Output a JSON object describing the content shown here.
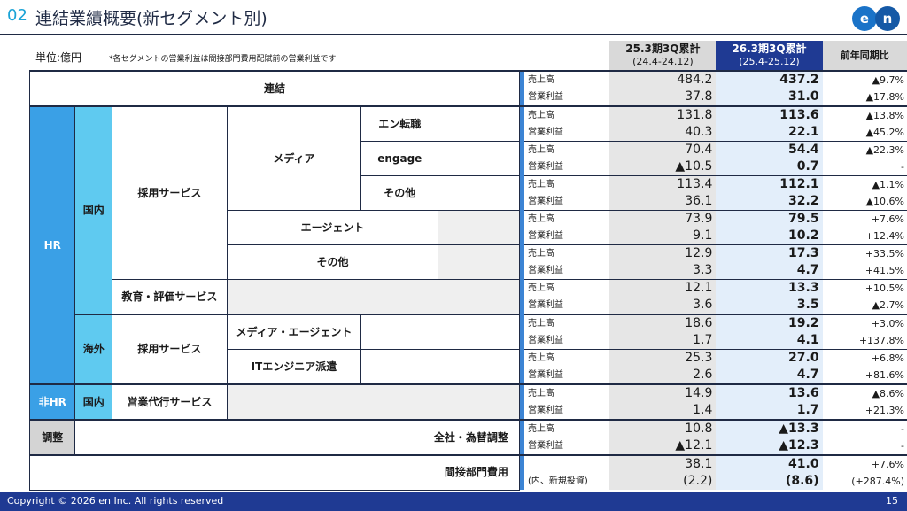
{
  "header": {
    "section_number": "02",
    "title": "連結業績概要(新セグメント別)",
    "logo_text": "en"
  },
  "unit_label": "単位:億円",
  "note": "*各セグメントの営業利益は間接部門費用配賦前の営業利益です",
  "columns": {
    "prev": {
      "title": "25.3期3Q累計",
      "period": "(24.4-24.12)"
    },
    "curr": {
      "title": "26.3期3Q累計",
      "period": "(25.4-25.12)"
    },
    "yoy": "前年同期比"
  },
  "labels": {
    "consolidated": "連結",
    "hr": "HR",
    "non_hr": "非HR",
    "adjust": "調整",
    "domestic": "国内",
    "overseas": "海外",
    "recruit_service": "採用サービス",
    "edu_service": "教育・評価サービス",
    "sales_agency": "営業代行サービス",
    "media": "メディア",
    "agent": "エージェント",
    "other": "その他",
    "media_agent": "メディア・エージェント",
    "it_dispatch": "ITエンジニア派遣",
    "en_tenshoku": "エン転職",
    "engage": "engage",
    "corp_fx": "全社・為替調整",
    "indirect": "間接部門費用",
    "revenue": "売上高",
    "op_profit": "営業利益",
    "new_invest": "(内、新規投資)"
  },
  "rows": {
    "consolidated": {
      "rev": [
        "484.2",
        "437.2",
        "▲9.7%"
      ],
      "op": [
        "37.8",
        "31.0",
        "▲17.8%"
      ]
    },
    "en_tenshoku": {
      "rev": [
        "131.8",
        "113.6",
        "▲13.8%"
      ],
      "op": [
        "40.3",
        "22.1",
        "▲45.2%"
      ]
    },
    "engage": {
      "rev": [
        "70.4",
        "54.4",
        "▲22.3%"
      ],
      "op": [
        "▲10.5",
        "0.7",
        "-"
      ]
    },
    "media_other": {
      "rev": [
        "113.4",
        "112.1",
        "▲1.1%"
      ],
      "op": [
        "36.1",
        "32.2",
        "▲10.6%"
      ]
    },
    "agent": {
      "rev": [
        "73.9",
        "79.5",
        "+7.6%"
      ],
      "op": [
        "9.1",
        "10.2",
        "+12.4%"
      ]
    },
    "other": {
      "rev": [
        "12.9",
        "17.3",
        "+33.5%"
      ],
      "op": [
        "3.3",
        "4.7",
        "+41.5%"
      ]
    },
    "edu": {
      "rev": [
        "12.1",
        "13.3",
        "+10.5%"
      ],
      "op": [
        "3.6",
        "3.5",
        "▲2.7%"
      ]
    },
    "os_media_agent": {
      "rev": [
        "18.6",
        "19.2",
        "+3.0%"
      ],
      "op": [
        "1.7",
        "4.1",
        "+137.8%"
      ]
    },
    "os_it": {
      "rev": [
        "25.3",
        "27.0",
        "+6.8%"
      ],
      "op": [
        "2.6",
        "4.7",
        "+81.6%"
      ]
    },
    "nonhr": {
      "rev": [
        "14.9",
        "13.6",
        "▲8.6%"
      ],
      "op": [
        "1.4",
        "1.7",
        "+21.3%"
      ]
    },
    "adjust": {
      "rev": [
        "10.8",
        "▲13.3",
        "-"
      ],
      "op": [
        "▲12.1",
        "▲12.3",
        "-"
      ]
    },
    "indirect": {
      "main": [
        "38.1",
        "41.0",
        "+7.6%"
      ],
      "sub": [
        "(2.2)",
        "(8.6)",
        "(+287.4%)"
      ]
    }
  },
  "footer": {
    "copyright": "Copyright © 2026 en Inc. All rights reserved",
    "page": "15"
  }
}
